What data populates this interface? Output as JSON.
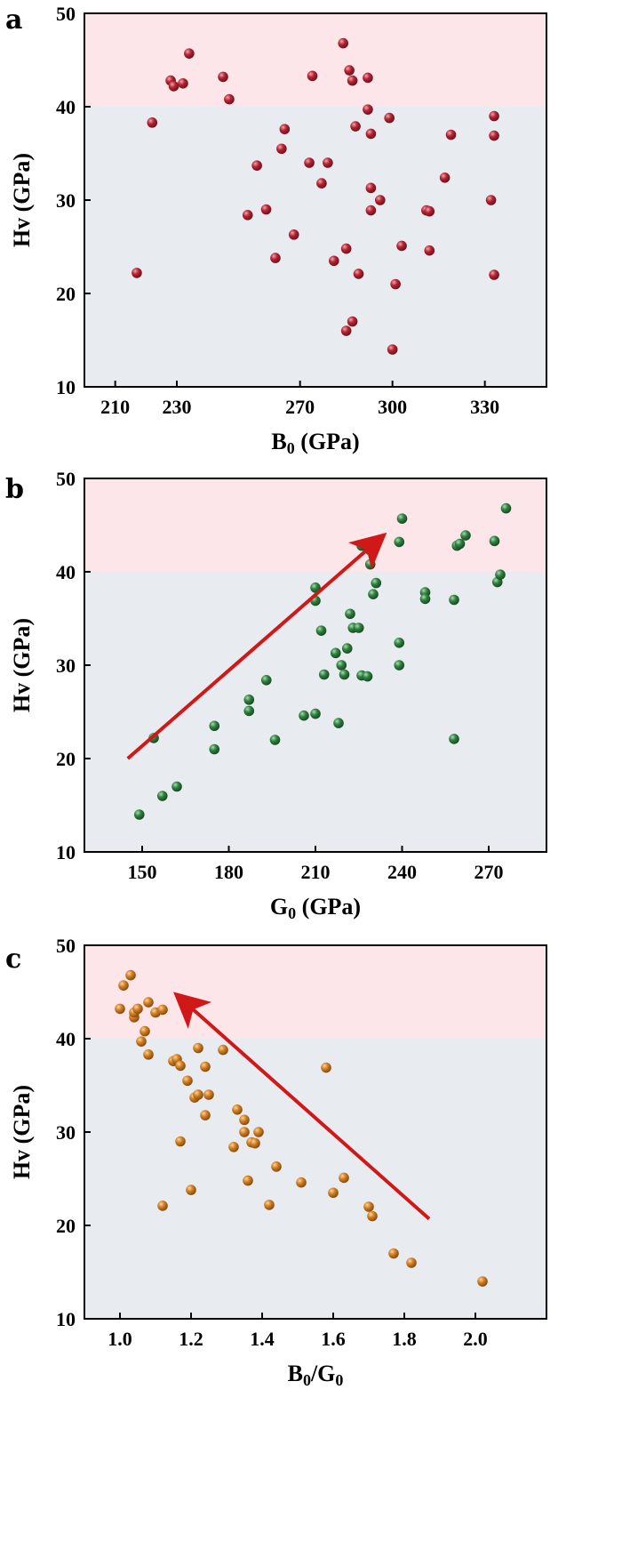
{
  "colors": {
    "hard_band": "#fce6e9",
    "normal_band": "#e8ecf1",
    "red_points": "#a8202e",
    "green_points": "#2e7a3c",
    "orange_points": "#cc7a1e",
    "arrow": "#d01818"
  },
  "chart_data": [
    {
      "type": "scatter",
      "panel": "a",
      "xlabel_main": "B",
      "xlabel_sub": "0",
      "xlabel_unit": " (GPa)",
      "ylabel": "Hv (GPa)",
      "xlim": [
        200,
        350
      ],
      "ylim": [
        10,
        50
      ],
      "xticks": [
        210,
        230,
        270,
        300,
        330
      ],
      "yticks": [
        10,
        20,
        30,
        40,
        50
      ],
      "shaded_band_threshold": 40,
      "grid": false,
      "point_color": "red",
      "points": [
        [
          217,
          22.2
        ],
        [
          222,
          38.3
        ],
        [
          228,
          42.8
        ],
        [
          229,
          42.2
        ],
        [
          232,
          42.5
        ],
        [
          234,
          45.7
        ],
        [
          245,
          43.2
        ],
        [
          247,
          40.8
        ],
        [
          253,
          28.4
        ],
        [
          256,
          33.7
        ],
        [
          259,
          29.0
        ],
        [
          262,
          23.8
        ],
        [
          264,
          35.5
        ],
        [
          265,
          37.6
        ],
        [
          268,
          26.3
        ],
        [
          273,
          34.0
        ],
        [
          274,
          43.3
        ],
        [
          277,
          31.8
        ],
        [
          279,
          34.0
        ],
        [
          281,
          23.5
        ],
        [
          284,
          46.8
        ],
        [
          285,
          24.8
        ],
        [
          285,
          16.0
        ],
        [
          286,
          43.9
        ],
        [
          287,
          17.0
        ],
        [
          287,
          42.8
        ],
        [
          288,
          37.9
        ],
        [
          289,
          22.1
        ],
        [
          292,
          43.1
        ],
        [
          292,
          39.7
        ],
        [
          293,
          37.1
        ],
        [
          293,
          28.9
        ],
        [
          293,
          31.3
        ],
        [
          296,
          30.0
        ],
        [
          299,
          38.8
        ],
        [
          300,
          14.0
        ],
        [
          301,
          21.0
        ],
        [
          303,
          25.1
        ],
        [
          311,
          28.9
        ],
        [
          312,
          28.8
        ],
        [
          312,
          24.6
        ],
        [
          317,
          32.4
        ],
        [
          319,
          37.0
        ],
        [
          332,
          30.0
        ],
        [
          333,
          39.0
        ],
        [
          333,
          36.9
        ],
        [
          333,
          22.0
        ]
      ]
    },
    {
      "type": "scatter",
      "panel": "b",
      "xlabel_main": "G",
      "xlabel_sub": "0",
      "xlabel_unit": " (GPa)",
      "ylabel": "Hv (GPa)",
      "xlim": [
        130,
        290
      ],
      "ylim": [
        10,
        50
      ],
      "xticks": [
        150,
        180,
        210,
        240,
        270
      ],
      "yticks": [
        10,
        20,
        30,
        40,
        50
      ],
      "shaded_band_threshold": 40,
      "grid": false,
      "point_color": "green",
      "arrow": {
        "from": [
          145,
          20.0
        ],
        "to": [
          231,
          43.2
        ]
      },
      "points": [
        [
          149,
          14.0
        ],
        [
          154,
          22.2
        ],
        [
          157,
          16.0
        ],
        [
          162,
          17.0
        ],
        [
          175,
          23.5
        ],
        [
          175,
          21.0
        ],
        [
          187,
          26.3
        ],
        [
          187,
          25.1
        ],
        [
          193,
          28.4
        ],
        [
          196,
          22.0
        ],
        [
          206,
          24.6
        ],
        [
          210,
          24.8
        ],
        [
          210,
          38.3
        ],
        [
          210,
          36.9
        ],
        [
          212,
          33.7
        ],
        [
          213,
          29.0
        ],
        [
          217,
          31.3
        ],
        [
          218,
          23.8
        ],
        [
          219,
          30.0
        ],
        [
          220,
          29.0
        ],
        [
          221,
          31.8
        ],
        [
          222,
          35.5
        ],
        [
          223,
          34.0
        ],
        [
          225,
          34.0
        ],
        [
          226,
          42.8
        ],
        [
          226,
          28.9
        ],
        [
          228,
          28.8
        ],
        [
          229,
          40.8
        ],
        [
          229,
          42.3
        ],
        [
          230,
          37.6
        ],
        [
          231,
          38.8
        ],
        [
          239,
          43.2
        ],
        [
          239,
          32.4
        ],
        [
          239,
          30.0
        ],
        [
          240,
          45.7
        ],
        [
          248,
          37.8
        ],
        [
          248,
          37.1
        ],
        [
          258,
          37.0
        ],
        [
          258,
          22.1
        ],
        [
          259,
          42.8
        ],
        [
          260,
          43.0
        ],
        [
          262,
          43.9
        ],
        [
          272,
          43.3
        ],
        [
          273,
          38.9
        ],
        [
          274,
          39.7
        ],
        [
          276,
          46.8
        ]
      ]
    },
    {
      "type": "scatter",
      "panel": "c",
      "xlabel_main": "B",
      "xlabel_sub": "0",
      "xlabel_mid": "/G",
      "xlabel_sub2": "0",
      "xlabel_unit": "",
      "ylabel": "Hv (GPa)",
      "xlim": [
        0.9,
        2.2
      ],
      "ylim": [
        10,
        50
      ],
      "xticks": [
        1.0,
        1.2,
        1.4,
        1.6,
        1.8,
        2.0
      ],
      "xtick_labels": [
        "1.0",
        "1.2",
        "1.4",
        "1.6",
        "1.8",
        "2.0"
      ],
      "yticks": [
        10,
        20,
        30,
        40,
        50
      ],
      "shaded_band_threshold": 40,
      "grid": false,
      "point_color": "orange",
      "arrow": {
        "from": [
          1.87,
          20.7
        ],
        "to": [
          1.18,
          44.0
        ]
      },
      "points": [
        [
          1.0,
          43.2
        ],
        [
          1.01,
          45.7
        ],
        [
          1.03,
          46.8
        ],
        [
          1.04,
          42.3
        ],
        [
          1.04,
          42.8
        ],
        [
          1.05,
          43.2
        ],
        [
          1.06,
          39.7
        ],
        [
          1.07,
          40.8
        ],
        [
          1.08,
          38.3
        ],
        [
          1.08,
          43.9
        ],
        [
          1.1,
          42.8
        ],
        [
          1.12,
          43.1
        ],
        [
          1.12,
          22.1
        ],
        [
          1.15,
          37.6
        ],
        [
          1.16,
          37.8
        ],
        [
          1.17,
          29.0
        ],
        [
          1.17,
          37.1
        ],
        [
          1.19,
          35.5
        ],
        [
          1.2,
          23.8
        ],
        [
          1.21,
          33.7
        ],
        [
          1.22,
          39.0
        ],
        [
          1.22,
          34.0
        ],
        [
          1.24,
          31.8
        ],
        [
          1.24,
          37.0
        ],
        [
          1.25,
          34.0
        ],
        [
          1.29,
          38.8
        ],
        [
          1.32,
          28.4
        ],
        [
          1.33,
          32.4
        ],
        [
          1.35,
          30.0
        ],
        [
          1.35,
          31.3
        ],
        [
          1.36,
          24.8
        ],
        [
          1.37,
          28.9
        ],
        [
          1.38,
          28.8
        ],
        [
          1.39,
          30.0
        ],
        [
          1.42,
          22.2
        ],
        [
          1.44,
          26.3
        ],
        [
          1.51,
          24.6
        ],
        [
          1.58,
          36.9
        ],
        [
          1.6,
          23.5
        ],
        [
          1.63,
          25.1
        ],
        [
          1.7,
          22.0
        ],
        [
          1.71,
          21.0
        ],
        [
          1.77,
          17.0
        ],
        [
          1.82,
          16.0
        ],
        [
          2.02,
          14.0
        ]
      ]
    }
  ]
}
